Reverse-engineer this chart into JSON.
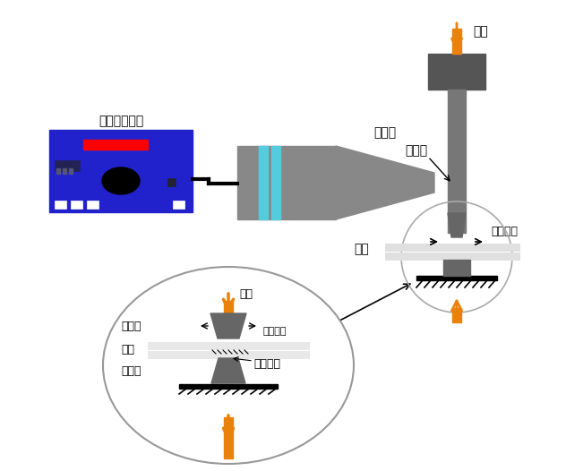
{
  "bg_color": "#ffffff",
  "orange_color": "#E8820A",
  "gray_color": "#777777",
  "dark_gray": "#444444",
  "blue_color": "#2222cc",
  "labels": {
    "generator": "超声波发生器",
    "transducer": "换能器",
    "horn": "变幅杆",
    "pressure": "压力",
    "vibration": "振动方向",
    "workpiece": "工件",
    "upper_electrode": "上声极",
    "lower_electrode": "下声极",
    "weld_zone": "焊接区域"
  }
}
